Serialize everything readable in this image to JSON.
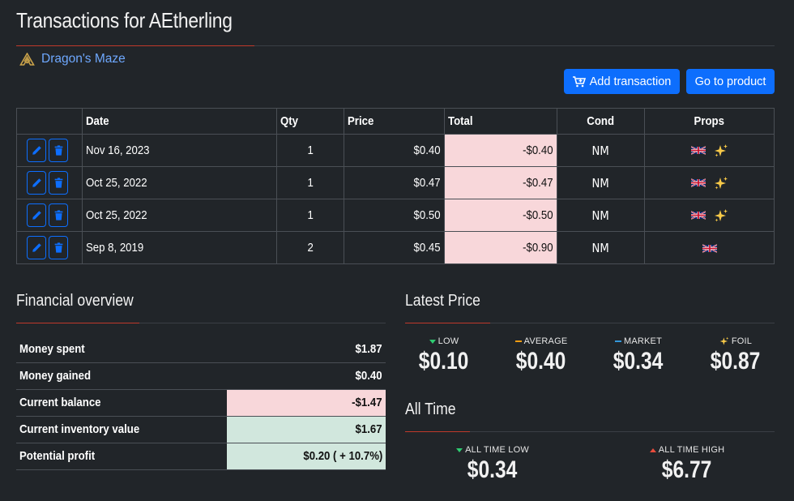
{
  "page": {
    "title": "Transactions for AEtherling"
  },
  "set": {
    "name": "Dragon's Maze"
  },
  "actions": {
    "add_label": "Add transaction",
    "go_label": "Go to product"
  },
  "table": {
    "headers": {
      "date": "Date",
      "qty": "Qty",
      "price": "Price",
      "total": "Total",
      "cond": "Cond",
      "props": "Props"
    },
    "rows": [
      {
        "date": "Nov 16, 2023",
        "qty": "1",
        "price": "$0.40",
        "total": "-$0.40",
        "cond": "NM",
        "flag": "uk-flag-icon",
        "foil": true
      },
      {
        "date": "Oct 25, 2022",
        "qty": "1",
        "price": "$0.47",
        "total": "-$0.47",
        "cond": "NM",
        "flag": "uk-flag-icon",
        "foil": true
      },
      {
        "date": "Oct 25, 2022",
        "qty": "1",
        "price": "$0.50",
        "total": "-$0.50",
        "cond": "NM",
        "flag": "uk-flag-icon",
        "foil": true
      },
      {
        "date": "Sep 8, 2019",
        "qty": "2",
        "price": "$0.45",
        "total": "-$0.90",
        "cond": "NM",
        "flag": "uk-flag-icon",
        "foil": false
      }
    ]
  },
  "financial": {
    "title": "Financial overview",
    "rows": [
      {
        "label": "Money spent",
        "value": "$1.87",
        "status": "none"
      },
      {
        "label": "Money gained",
        "value": "$0.40",
        "status": "none"
      },
      {
        "label": "Current balance",
        "value": "-$1.47",
        "status": "negative"
      },
      {
        "label": "Current inventory value",
        "value": "$1.67",
        "status": "positive"
      },
      {
        "label": "Potential profit",
        "value": "$0.20 ( + 10.7%)",
        "status": "positive"
      }
    ]
  },
  "latest_price": {
    "title": "Latest Price",
    "items": [
      {
        "label": "LOW",
        "value": "$0.10",
        "marker": "arrow-down-icon",
        "color": "#2ecc71"
      },
      {
        "label": "AVERAGE",
        "value": "$0.40",
        "marker": "dash-icon",
        "color": "#f39c12"
      },
      {
        "label": "MARKET",
        "value": "$0.34",
        "marker": "dash-icon",
        "color": "#3498db"
      },
      {
        "label": "FOIL",
        "value": "$0.87",
        "marker": "sparkle-icon",
        "color": "#f1c40f"
      }
    ]
  },
  "all_time": {
    "title": "All Time",
    "low": {
      "label": "ALL TIME LOW",
      "value": "$0.34"
    },
    "high": {
      "label": "ALL TIME HIGH",
      "value": "$6.77"
    }
  },
  "colors": {
    "accent": "#0d6efd",
    "rule_accent": "#c0392b",
    "negative_bg": "#f8d7da",
    "positive_bg": "#d1e7dd",
    "link": "#6ea8fe"
  }
}
